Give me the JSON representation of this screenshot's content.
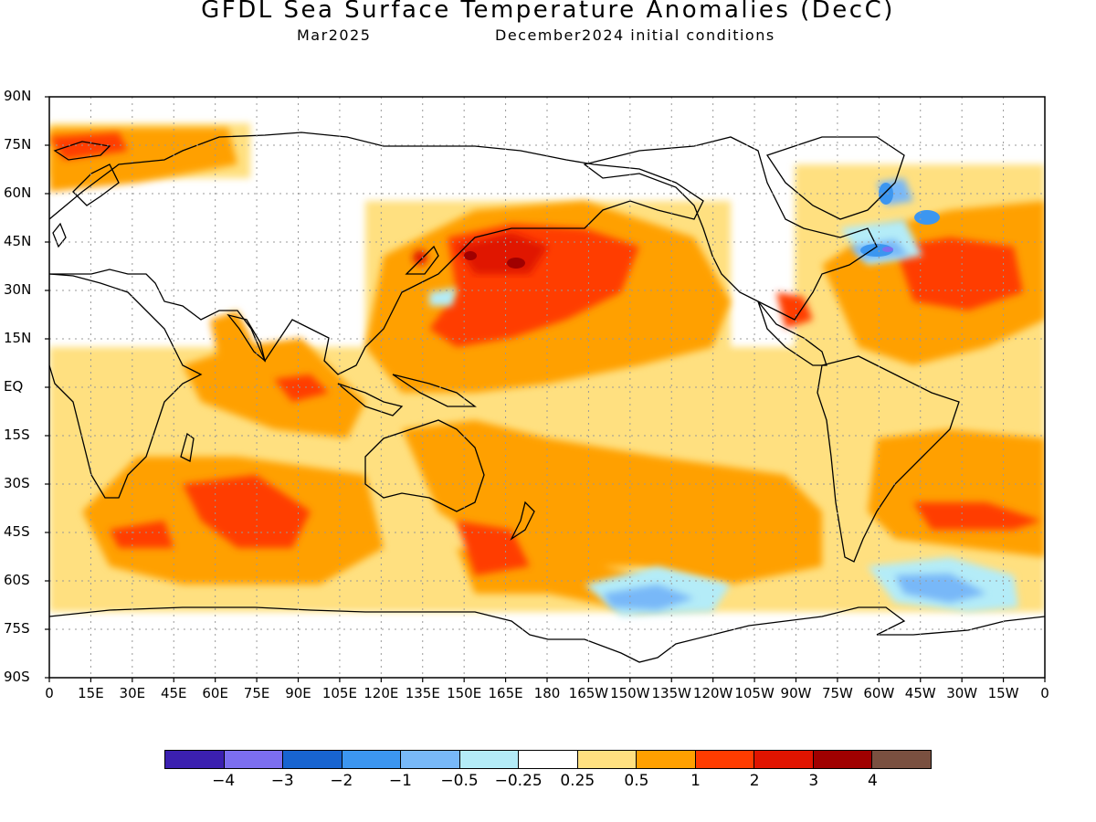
{
  "title": "GFDL Sea Surface Temperature Anomalies (DecC)",
  "subtitle_left": "Mar2025",
  "subtitle_right": "December2024 initial conditions",
  "lat_labels": [
    "90N",
    "75N",
    "60N",
    "45N",
    "30N",
    "15N",
    "EQ",
    "15S",
    "30S",
    "45S",
    "60S",
    "75S",
    "90S"
  ],
  "lon_labels": [
    "0",
    "15E",
    "30E",
    "45E",
    "60E",
    "75E",
    "90E",
    "105E",
    "120E",
    "135E",
    "150E",
    "165E",
    "180",
    "165W",
    "150W",
    "135W",
    "120W",
    "105W",
    "90W",
    "75W",
    "60W",
    "45W",
    "30W",
    "15W",
    "0"
  ],
  "colorbar": {
    "colors": [
      "#3b20b0",
      "#7c6ef0",
      "#1864d0",
      "#3c96f0",
      "#78b8f8",
      "#b4ecf8",
      "#ffffff",
      "#ffe080",
      "#ffa000",
      "#ff3c00",
      "#e01400",
      "#a00000",
      "#7a5040"
    ],
    "labels": [
      "−4",
      "−3",
      "−2",
      "−1",
      "−0.5",
      "−0.25",
      "0.25",
      "0.5",
      "1",
      "2",
      "3",
      "4"
    ]
  }
}
